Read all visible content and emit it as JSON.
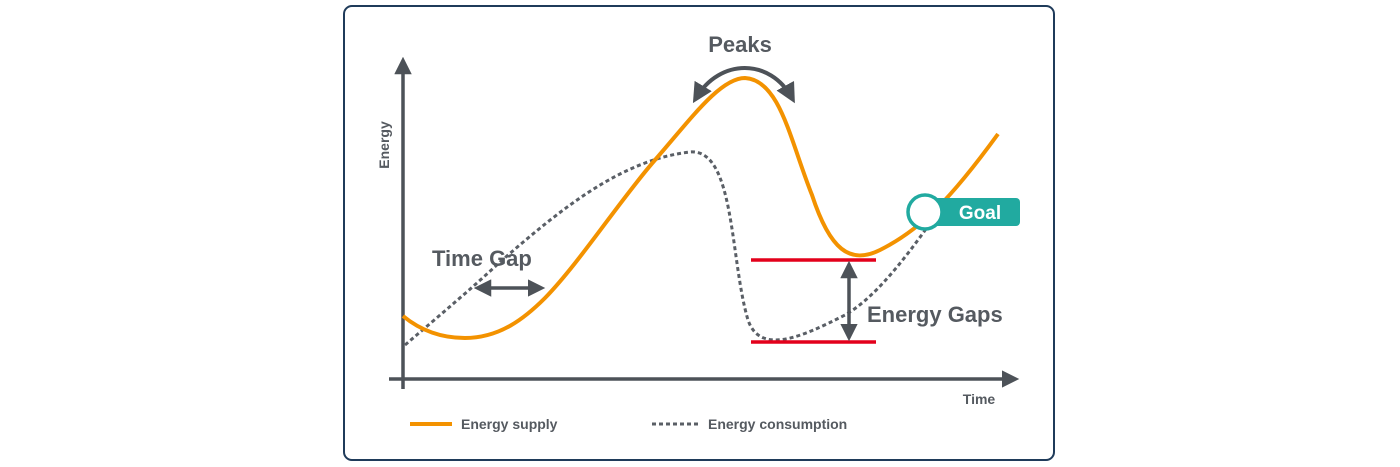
{
  "axes": {
    "y_label": "Energy",
    "x_label": "Time"
  },
  "annotations": {
    "peaks": "Peaks",
    "time_gap": "Time Gap",
    "energy_gaps": "Energy Gaps",
    "goal": "Goal"
  },
  "legend": {
    "supply": "Energy supply",
    "consumption": "Energy consumption"
  },
  "colors": {
    "supply": "#f39200",
    "consumption": "#5a5f66",
    "gap_lines": "#e3001b",
    "goal": "#21aaa0",
    "axis": "#4d5258",
    "frame": "#1f3b5a"
  }
}
